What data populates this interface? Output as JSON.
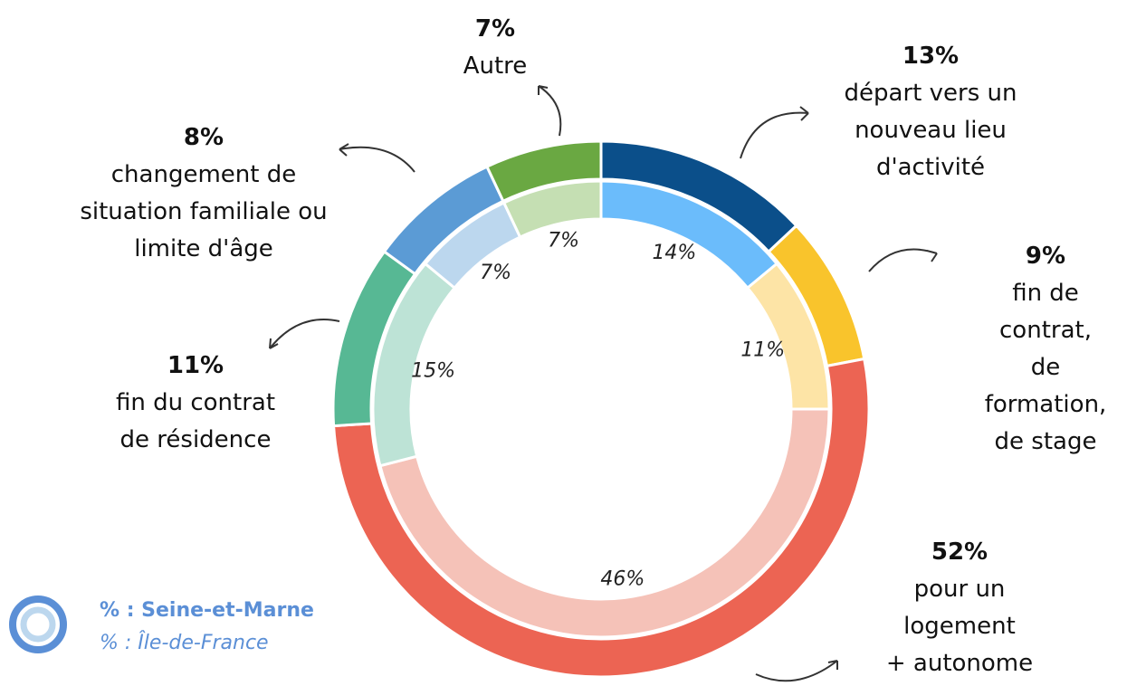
{
  "chart_data": {
    "type": "donut",
    "categories": [
      "départ vers un\nnouveau lieu\nd'activité",
      "fin de contrat,\nde formation,\nde stage",
      "pour un logement\n+ autonome",
      "fin du contrat\nde résidence",
      "changement de\nsituation familiale ou\nlimite d'âge",
      "Autre"
    ],
    "series": [
      {
        "name": "% : Seine-et-Marne",
        "values": [
          13,
          9,
          52,
          11,
          8,
          7
        ],
        "value_labels": [
          "13%",
          "9%",
          "52%",
          "11%",
          "8%",
          "7%"
        ],
        "colors": [
          "#0b4f8a",
          "#f9c42c",
          "#ec6453",
          "#57b894",
          "#5b9bd5",
          "#6aa842"
        ]
      },
      {
        "name": "% : Île-de-France",
        "values": [
          14,
          11,
          46,
          15,
          7,
          7
        ],
        "value_labels": [
          "14%",
          "11%",
          "46%",
          "15%",
          "7%",
          "7%"
        ],
        "colors": [
          "#6bbcfb",
          "#fde4a6",
          "#f5c2b8",
          "#bde3d6",
          "#bcd7ee",
          "#c5dfb3"
        ]
      }
    ]
  }
}
